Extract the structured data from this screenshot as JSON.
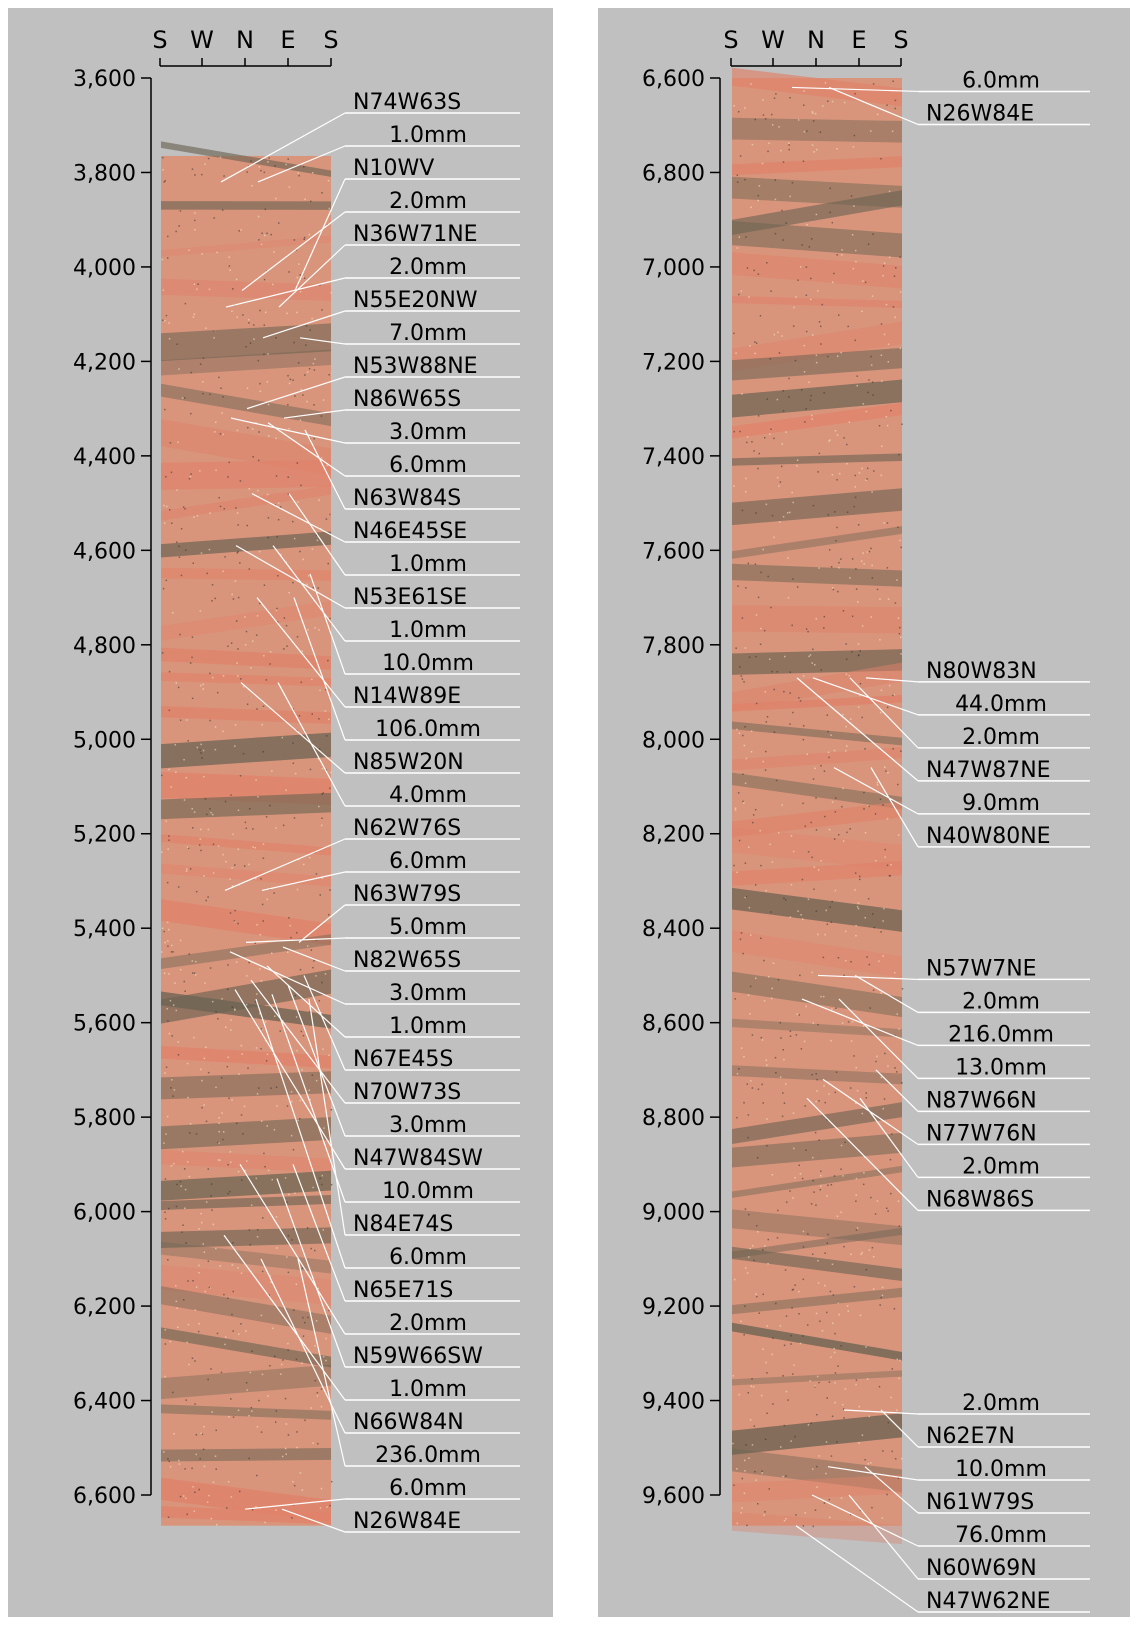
{
  "compass": [
    "S",
    "W",
    "N",
    "E",
    "S"
  ],
  "colors": {
    "background": "#c0c0c0",
    "core_light": "#d9957c",
    "core_dark": "#6b6352",
    "core_pink": "#e0826a",
    "leader_line": "#ffffff"
  },
  "panels": [
    {
      "name": "left",
      "depth_range": [
        3600,
        6600
      ],
      "core_start": 3765,
      "core_end": 6665,
      "ticks": [
        "3,600",
        "3,800",
        "4,000",
        "4,200",
        "4,400",
        "4,600",
        "4,800",
        "5,000",
        "5,200",
        "5,400",
        "5,600",
        "5,800",
        "6,000",
        "6,200",
        "6,400",
        "6,600"
      ],
      "annotations": [
        {
          "label": "N74W63S",
          "depth": 3820
        },
        {
          "label": "1.0mm",
          "depth": 3820
        },
        {
          "label": "N10WV",
          "depth": 4050
        },
        {
          "label": "2.0mm",
          "depth": 4050
        },
        {
          "label": "N36W71NE",
          "depth": 4085
        },
        {
          "label": "2.0mm",
          "depth": 4085
        },
        {
          "label": "N55E20NW",
          "depth": 4150
        },
        {
          "label": "7.0mm",
          "depth": 4150
        },
        {
          "label": "N53W88NE",
          "depth": 4300
        },
        {
          "label": "N86W65S",
          "depth": 4320
        },
        {
          "label": "3.0mm",
          "depth": 4320
        },
        {
          "label": "6.0mm",
          "depth": 4330
        },
        {
          "label": "N63W84S",
          "depth": 4345
        },
        {
          "label": "N46E45SE",
          "depth": 4480
        },
        {
          "label": "1.0mm",
          "depth": 4480
        },
        {
          "label": "N53E61SE",
          "depth": 4590
        },
        {
          "label": "1.0mm",
          "depth": 4590
        },
        {
          "label": "10.0mm",
          "depth": 4650
        },
        {
          "label": "N14W89E",
          "depth": 4700
        },
        {
          "label": "106.0mm",
          "depth": 4700
        },
        {
          "label": "N85W20N",
          "depth": 4880
        },
        {
          "label": "4.0mm",
          "depth": 4880
        },
        {
          "label": "N62W76S",
          "depth": 5320
        },
        {
          "label": "6.0mm",
          "depth": 5320
        },
        {
          "label": "N63W79S",
          "depth": 5430
        },
        {
          "label": "5.0mm",
          "depth": 5430
        },
        {
          "label": "N82W65S",
          "depth": 5440
        },
        {
          "label": "3.0mm",
          "depth": 5450
        },
        {
          "label": "1.0mm",
          "depth": 5480
        },
        {
          "label": "N67E45S",
          "depth": 5500
        },
        {
          "label": "N70W73S",
          "depth": 5510
        },
        {
          "label": "3.0mm",
          "depth": 5520
        },
        {
          "label": "N47W84SW",
          "depth": 5530
        },
        {
          "label": "10.0mm",
          "depth": 5540
        },
        {
          "label": "N84E74S",
          "depth": 5550
        },
        {
          "label": "6.0mm",
          "depth": 5550
        },
        {
          "label": "N65E71S",
          "depth": 5900
        },
        {
          "label": "2.0mm",
          "depth": 5900
        },
        {
          "label": "N59W66SW",
          "depth": 5930
        },
        {
          "label": "1.0mm",
          "depth": 6050
        },
        {
          "label": "N66W84N",
          "depth": 6100
        },
        {
          "label": "236.0mm",
          "depth": 6100
        },
        {
          "label": "6.0mm",
          "depth": 6630
        },
        {
          "label": "N26W84E",
          "depth": 6630
        }
      ]
    },
    {
      "name": "right",
      "depth_range": [
        6600,
        9600
      ],
      "core_start": 6600,
      "core_end": 9665,
      "ticks": [
        "6,600",
        "6,800",
        "7,000",
        "7,200",
        "7,400",
        "7,600",
        "7,800",
        "8,000",
        "8,200",
        "8,400",
        "8,600",
        "8,800",
        "9,000",
        "9,200",
        "9,400",
        "9,600"
      ],
      "annotations": [
        {
          "label": "6.0mm",
          "depth": 6620
        },
        {
          "label": "N26W84E",
          "depth": 6620
        },
        {
          "label": "N80W83N",
          "depth": 7870
        },
        {
          "label": "44.0mm",
          "depth": 7870
        },
        {
          "label": "2.0mm",
          "depth": 7870
        },
        {
          "label": "N47W87NE",
          "depth": 7870
        },
        {
          "label": "9.0mm",
          "depth": 8060
        },
        {
          "label": "N40W80NE",
          "depth": 8060
        },
        {
          "label": "N57W7NE",
          "depth": 8500
        },
        {
          "label": "2.0mm",
          "depth": 8500
        },
        {
          "label": "216.0mm",
          "depth": 8550
        },
        {
          "label": "13.0mm",
          "depth": 8550
        },
        {
          "label": "N87W66N",
          "depth": 8700
        },
        {
          "label": "N77W76N",
          "depth": 8720
        },
        {
          "label": "2.0mm",
          "depth": 8760
        },
        {
          "label": "N68W86S",
          "depth": 8760
        },
        {
          "label": "2.0mm",
          "depth": 9420
        },
        {
          "label": "N62E7N",
          "depth": 9420
        },
        {
          "label": "10.0mm",
          "depth": 9540
        },
        {
          "label": "N61W79S",
          "depth": 9540
        },
        {
          "label": "76.0mm",
          "depth": 9600
        },
        {
          "label": "N60W69N",
          "depth": 9600
        },
        {
          "label": "N47W62NE",
          "depth": 9665
        }
      ]
    }
  ]
}
